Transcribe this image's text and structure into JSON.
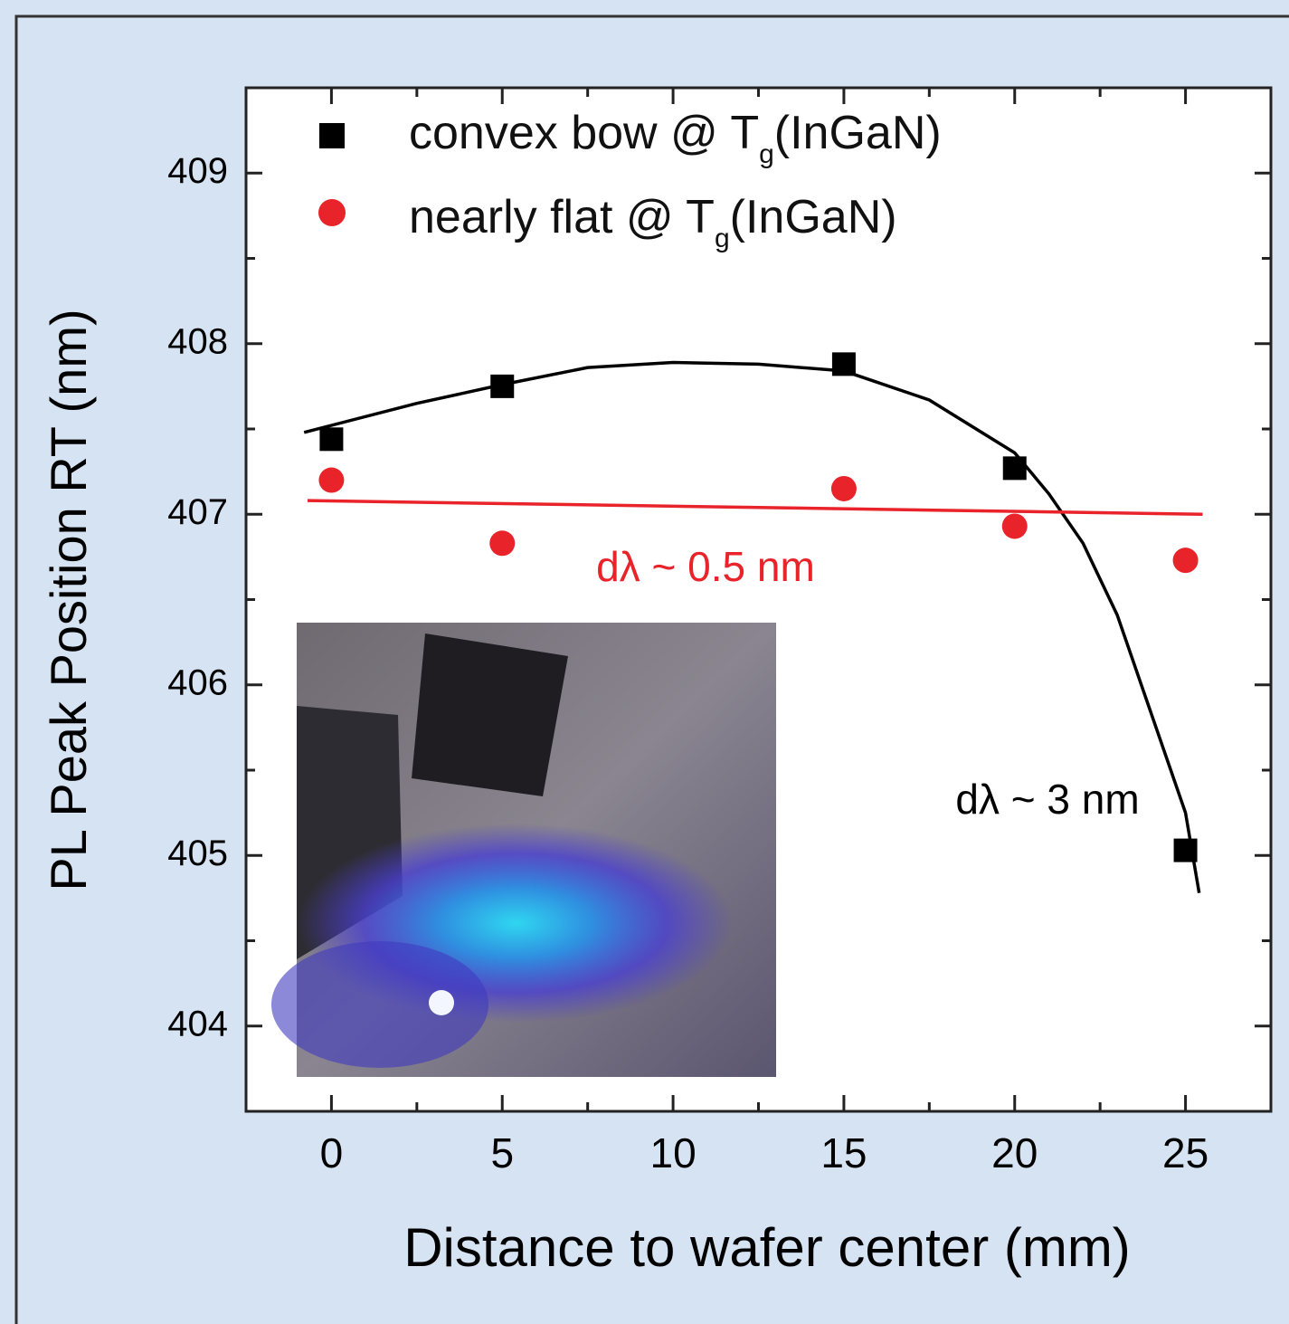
{
  "chart_data": {
    "type": "scatter",
    "x_label": "Distance to wafer center (mm)",
    "y_label": "PL Peak Position RT (nm)",
    "xlim": [
      -2.5,
      27.5
    ],
    "ylim": [
      403.5,
      409.5
    ],
    "xticks": [
      0,
      5,
      10,
      15,
      20,
      25
    ],
    "yticks": [
      404,
      405,
      406,
      407,
      408,
      409
    ],
    "xminorticks": [
      2.5,
      7.5,
      12.5,
      17.5,
      22.5
    ],
    "yminorticks": [
      403.5,
      404.5,
      405.5,
      406.5,
      407.5,
      408.5,
      409.5
    ],
    "series": [
      {
        "type": "scatter",
        "marker": "square",
        "name": [
          "convex bow @ T",
          "g",
          "(InGaN)"
        ],
        "color": "#000000",
        "x": [
          0,
          5,
          15,
          20,
          25
        ],
        "values": [
          407.44,
          407.75,
          407.88,
          407.27,
          405.03
        ]
      },
      {
        "type": "scatter",
        "marker": "circle",
        "name": [
          "nearly flat @ T",
          "g",
          "(InGaN)"
        ],
        "color": "#e8232a",
        "x": [
          0,
          5,
          15,
          20,
          25
        ],
        "values": [
          407.2,
          406.83,
          407.15,
          406.93,
          406.73
        ]
      },
      {
        "type": "line",
        "color": "#000000",
        "x": [
          -0.8,
          2.5,
          5,
          7.5,
          10,
          12.5,
          15,
          17.5,
          20,
          21,
          22,
          23,
          24,
          25,
          25.4
        ],
        "values": [
          407.48,
          407.65,
          407.76,
          407.86,
          407.89,
          407.88,
          407.84,
          407.67,
          407.36,
          407.12,
          406.83,
          406.41,
          405.83,
          405.25,
          404.78
        ]
      },
      {
        "type": "line",
        "color": "#e8232a",
        "x": [
          -0.7,
          25.5
        ],
        "values": [
          407.08,
          407.0
        ]
      }
    ],
    "annotations": [
      {
        "text": "dλ ~ 0.5 nm",
        "color": "#e8232a"
      },
      {
        "text": "dλ ~ 3 nm",
        "color": "#000000"
      }
    ]
  }
}
